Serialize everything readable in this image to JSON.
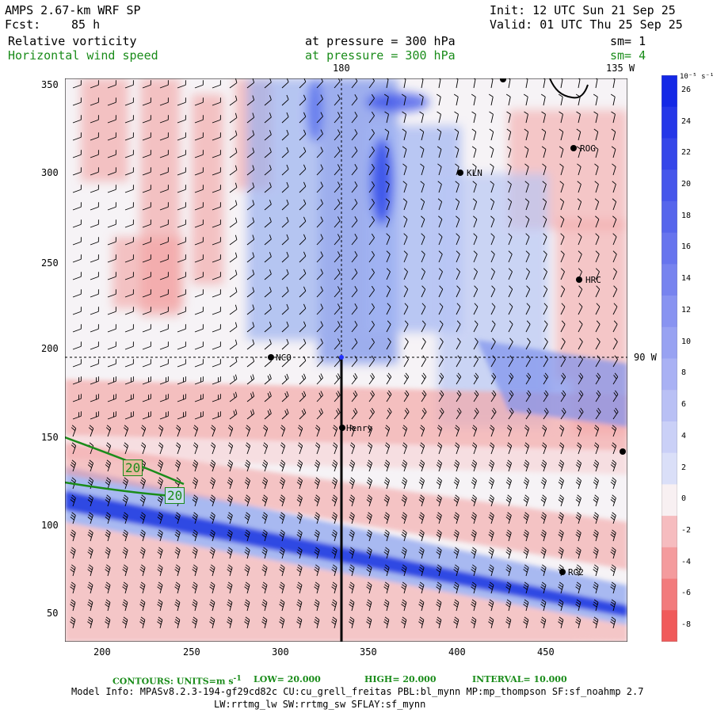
{
  "header": {
    "model": "AMPS 2.67-km WRF SP",
    "init": "Init: 12 UTC Sun 21 Sep 25",
    "fcst_label": "Fcst:",
    "fcst_value": "85 h",
    "valid": "Valid: 01 UTC Thu 25 Sep 25",
    "field1": "Relative vorticity",
    "field1_level": "at pressure =  300 hPa",
    "field1_sm": "sm= 1",
    "field2": "Horizontal wind speed",
    "field2_level": "at pressure =  300 hPa",
    "field2_sm": "sm= 4"
  },
  "map": {
    "lon_labels": [
      "180",
      "135 W",
      "90 W"
    ],
    "x_ticks": [
      "200",
      "250",
      "300",
      "350",
      "400",
      "450"
    ],
    "y_ticks": [
      "350",
      "300",
      "250",
      "200",
      "150",
      "100",
      "50"
    ],
    "stations": [
      "ROG",
      "KLN",
      "HRC",
      "NCO",
      "Henry",
      "RG2"
    ],
    "contour_labels": [
      "20",
      "20"
    ]
  },
  "colorbar": {
    "units": "10⁻⁵ s⁻¹",
    "labels": [
      "26",
      "24",
      "22",
      "20",
      "18",
      "16",
      "14",
      "12",
      "10",
      "8",
      "6",
      "4",
      "2",
      "0",
      "-2",
      "-4",
      "-6",
      "-8"
    ],
    "pos_color": "#1428e6",
    "neg_color": "#f05a5a"
  },
  "footer": {
    "contours": "CONTOURS:  UNITS=m s",
    "units_sup": "-1",
    "low": "LOW=  20.000",
    "high": "HIGH=  20.000",
    "interval": "INTERVAL=   10.000",
    "model_info": "Model Info: MPASv8.2.3-194-gf29cd82c CU:cu_grell_freitas PBL:bl_mynn MP:mp_thompson SF:sf_noahmp 2.7",
    "model_info2": "LW:rrtmg_lw SW:rrtmg_sw SFLAY:sf_mynn"
  }
}
